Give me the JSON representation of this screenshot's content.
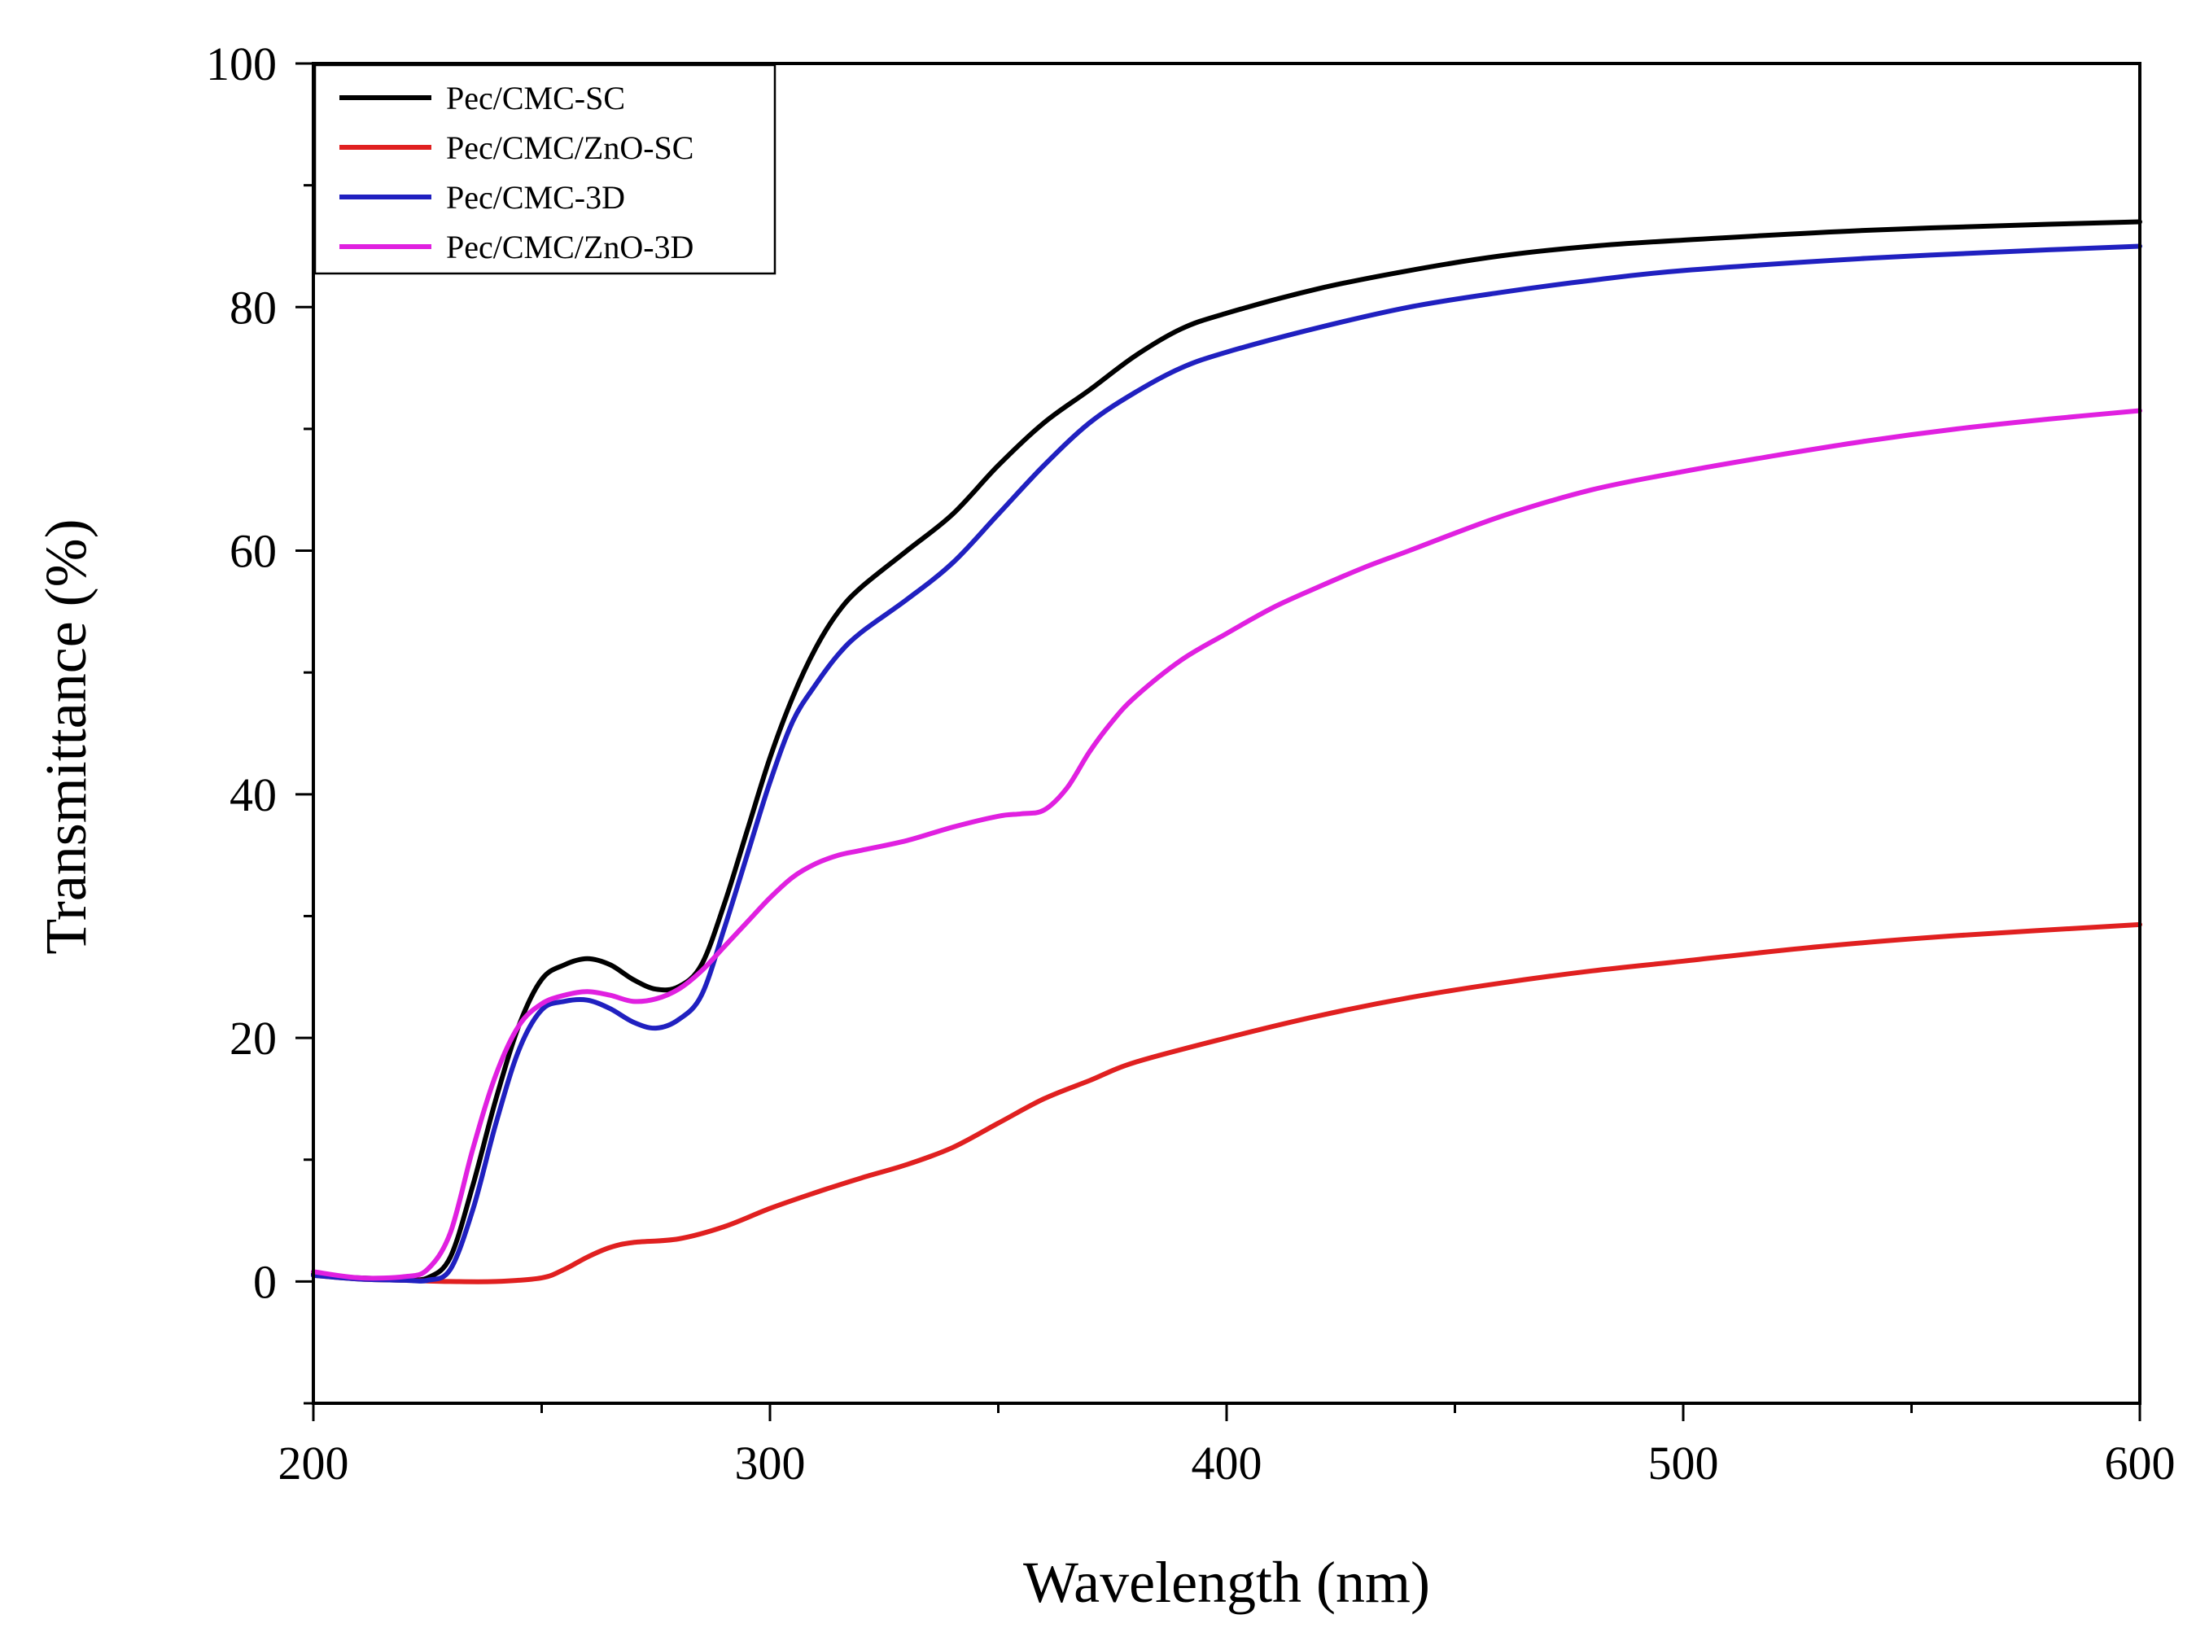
{
  "chart_data": {
    "type": "line",
    "title": "",
    "xlabel": "Wavelength (nm)",
    "ylabel": "Transmittance (%)",
    "xlim": [
      200,
      600
    ],
    "ylim": [
      -10,
      100
    ],
    "xticks": [
      200,
      300,
      400,
      500,
      600
    ],
    "yticks": [
      0,
      20,
      40,
      60,
      80,
      100
    ],
    "grid": false,
    "legend_position": "top-left",
    "series": [
      {
        "name": "Pec/CMC-SC",
        "color": "#000000",
        "points": [
          [
            200,
            0.6
          ],
          [
            210,
            0.3
          ],
          [
            220,
            0.2
          ],
          [
            225,
            0.3
          ],
          [
            230,
            2
          ],
          [
            235,
            8
          ],
          [
            240,
            15
          ],
          [
            245,
            21
          ],
          [
            250,
            24.8
          ],
          [
            255,
            26
          ],
          [
            260,
            26.5
          ],
          [
            265,
            26
          ],
          [
            270,
            24.8
          ],
          [
            275,
            24
          ],
          [
            280,
            24.2
          ],
          [
            285,
            26
          ],
          [
            290,
            31
          ],
          [
            295,
            37
          ],
          [
            300,
            43
          ],
          [
            305,
            48
          ],
          [
            310,
            52
          ],
          [
            315,
            55
          ],
          [
            320,
            57
          ],
          [
            330,
            60
          ],
          [
            340,
            63
          ],
          [
            350,
            67
          ],
          [
            360,
            70.5
          ],
          [
            370,
            73.2
          ],
          [
            380,
            76
          ],
          [
            390,
            78.2
          ],
          [
            400,
            79.5
          ],
          [
            420,
            81.5
          ],
          [
            440,
            83
          ],
          [
            460,
            84.2
          ],
          [
            480,
            85
          ],
          [
            500,
            85.5
          ],
          [
            540,
            86.3
          ],
          [
            580,
            86.8
          ],
          [
            600,
            87
          ]
        ]
      },
      {
        "name": "Pec/CMC/ZnO-SC",
        "color": "#e02020",
        "points": [
          [
            200,
            0.5
          ],
          [
            210,
            0.2
          ],
          [
            220,
            0.1
          ],
          [
            230,
            0
          ],
          [
            240,
            0
          ],
          [
            250,
            0.3
          ],
          [
            255,
            1
          ],
          [
            260,
            2
          ],
          [
            265,
            2.8
          ],
          [
            270,
            3.2
          ],
          [
            280,
            3.5
          ],
          [
            290,
            4.5
          ],
          [
            300,
            6
          ],
          [
            310,
            7.3
          ],
          [
            320,
            8.5
          ],
          [
            330,
            9.6
          ],
          [
            340,
            11
          ],
          [
            350,
            13
          ],
          [
            360,
            15
          ],
          [
            370,
            16.5
          ],
          [
            380,
            18
          ],
          [
            400,
            20
          ],
          [
            420,
            21.8
          ],
          [
            440,
            23.3
          ],
          [
            460,
            24.5
          ],
          [
            480,
            25.5
          ],
          [
            500,
            26.3
          ],
          [
            530,
            27.5
          ],
          [
            560,
            28.4
          ],
          [
            600,
            29.3
          ]
        ]
      },
      {
        "name": "Pec/CMC-3D",
        "color": "#2020c0",
        "points": [
          [
            200,
            0.5
          ],
          [
            210,
            0.2
          ],
          [
            220,
            0.1
          ],
          [
            225,
            0.1
          ],
          [
            230,
            1
          ],
          [
            235,
            6
          ],
          [
            240,
            13
          ],
          [
            245,
            19
          ],
          [
            250,
            22.3
          ],
          [
            255,
            23
          ],
          [
            260,
            23.1
          ],
          [
            265,
            22.4
          ],
          [
            270,
            21.3
          ],
          [
            275,
            20.8
          ],
          [
            280,
            21.5
          ],
          [
            285,
            23.5
          ],
          [
            290,
            29
          ],
          [
            295,
            35
          ],
          [
            300,
            41
          ],
          [
            305,
            46
          ],
          [
            310,
            49
          ],
          [
            315,
            51.5
          ],
          [
            320,
            53.3
          ],
          [
            330,
            56
          ],
          [
            340,
            59
          ],
          [
            350,
            63
          ],
          [
            360,
            67
          ],
          [
            370,
            70.5
          ],
          [
            380,
            73
          ],
          [
            390,
            75
          ],
          [
            400,
            76.3
          ],
          [
            420,
            78.3
          ],
          [
            440,
            80
          ],
          [
            460,
            81.2
          ],
          [
            480,
            82.2
          ],
          [
            500,
            83
          ],
          [
            540,
            84
          ],
          [
            580,
            84.7
          ],
          [
            600,
            85
          ]
        ]
      },
      {
        "name": "Pec/CMC/ZnO-3D",
        "color": "#e020e0",
        "points": [
          [
            200,
            0.8
          ],
          [
            210,
            0.3
          ],
          [
            220,
            0.4
          ],
          [
            225,
            1
          ],
          [
            230,
            4
          ],
          [
            235,
            11
          ],
          [
            240,
            17
          ],
          [
            245,
            21
          ],
          [
            250,
            22.8
          ],
          [
            255,
            23.5
          ],
          [
            260,
            23.8
          ],
          [
            265,
            23.5
          ],
          [
            270,
            23
          ],
          [
            275,
            23.2
          ],
          [
            280,
            24
          ],
          [
            285,
            25.5
          ],
          [
            290,
            27.5
          ],
          [
            295,
            29.5
          ],
          [
            300,
            31.5
          ],
          [
            305,
            33.2
          ],
          [
            310,
            34.3
          ],
          [
            315,
            35
          ],
          [
            320,
            35.4
          ],
          [
            330,
            36.2
          ],
          [
            340,
            37.3
          ],
          [
            350,
            38.2
          ],
          [
            355,
            38.4
          ],
          [
            360,
            38.7
          ],
          [
            365,
            40.5
          ],
          [
            370,
            43.5
          ],
          [
            375,
            46
          ],
          [
            380,
            48
          ],
          [
            390,
            51
          ],
          [
            400,
            53.2
          ],
          [
            410,
            55.3
          ],
          [
            420,
            57
          ],
          [
            430,
            58.6
          ],
          [
            440,
            60
          ],
          [
            460,
            62.8
          ],
          [
            480,
            65
          ],
          [
            500,
            66.5
          ],
          [
            520,
            67.8
          ],
          [
            540,
            69
          ],
          [
            560,
            70
          ],
          [
            580,
            70.8
          ],
          [
            600,
            71.5
          ]
        ]
      }
    ]
  }
}
